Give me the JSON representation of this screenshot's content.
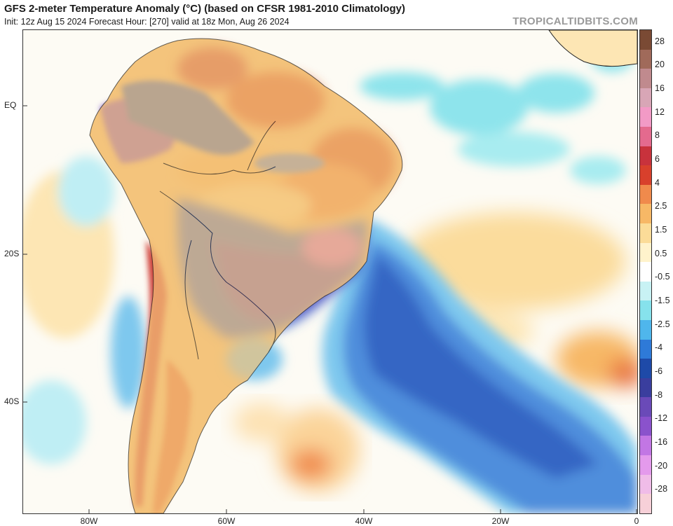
{
  "header": {
    "title": "GFS 2-meter Temperature Anomaly (°C) (based on CFSR 1981-2010 Climatology)",
    "subtitle": "Init: 12z Aug 15 2024   Forecast Hour: [270]   valid at 18z Mon, Aug 26 2024",
    "brand": "TROPICALTIDBITS.COM"
  },
  "axes": {
    "lat_labels": [
      "EQ",
      "20S",
      "40S"
    ],
    "lon_labels": [
      "80W",
      "60W",
      "40W",
      "20W",
      "0"
    ]
  },
  "colorbar": {
    "labels": [
      "28",
      "20",
      "16",
      "12",
      "8",
      "6",
      "4",
      "2.5",
      "1.5",
      "0.5",
      "-0.5",
      "-1.5",
      "-2.5",
      "-4",
      "-6",
      "-8",
      "-12",
      "-16",
      "-20",
      "-28"
    ],
    "colors": [
      "#7a4a34",
      "#a06a5a",
      "#c08a8e",
      "#d8a6b6",
      "#f29ac6",
      "#e46a8e",
      "#c8323c",
      "#d8402c",
      "#f08a4c",
      "#f7b866",
      "#fbdc98",
      "#fff3cc",
      "#ffffff",
      "#c8f2f4",
      "#86e2ec",
      "#4fb6ec",
      "#2e7ad8",
      "#1e4aa8",
      "#3a3e9e",
      "#6a4ab8",
      "#8a52cc",
      "#c276e4",
      "#e49aec",
      "#f0bce8",
      "#f7d0d8"
    ]
  },
  "colors": {
    "ocean_cool": "#4f86d6",
    "deep_cool": "#2f5bbf",
    "purple_cold": "#7a4fc9",
    "warm": "#d9532f",
    "light_warm": "#f7c98a",
    "cyan": "#7fe0ea"
  }
}
